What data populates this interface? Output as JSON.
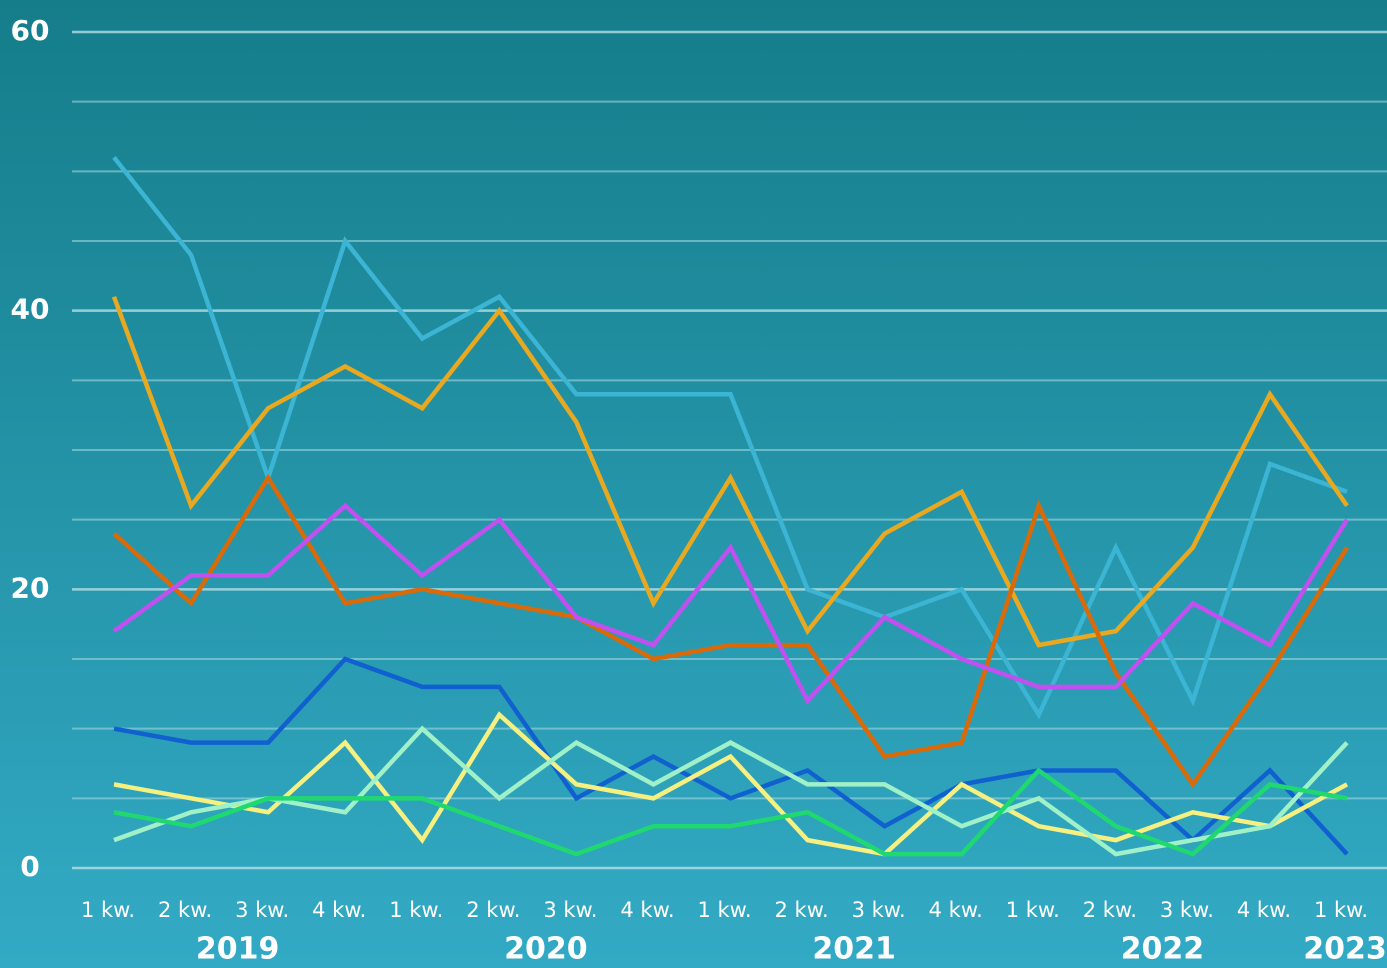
{
  "chart_data": {
    "type": "line",
    "categories": [
      "1 kw.",
      "2 kw.",
      "3 kw.",
      "4 kw.",
      "1 kw.",
      "2 kw.",
      "3 kw.",
      "4 kw.",
      "1 kw.",
      "2 kw.",
      "3 kw.",
      "4 kw.",
      "1 kw.",
      "2 kw.",
      "3 kw.",
      "4 kw.",
      "1 kw."
    ],
    "groups": [
      {
        "label": "2019",
        "count": 4
      },
      {
        "label": "2020",
        "count": 4
      },
      {
        "label": "2021",
        "count": 4
      },
      {
        "label": "2022",
        "count": 4
      },
      {
        "label": "2023",
        "count": 1
      }
    ],
    "series": [
      {
        "color": "#3cb4d4",
        "values": [
          51,
          44,
          28,
          45,
          38,
          41,
          34,
          34,
          34,
          20,
          18,
          20,
          11,
          23,
          12,
          29,
          27
        ]
      },
      {
        "color": "#e8a820",
        "values": [
          41,
          26,
          33,
          36,
          33,
          40,
          32,
          19,
          28,
          17,
          24,
          27,
          16,
          17,
          23,
          34,
          26
        ]
      },
      {
        "color": "#d96a0a",
        "values": [
          24,
          19,
          28,
          19,
          20,
          19,
          18,
          15,
          16,
          16,
          8,
          9,
          26,
          14,
          6,
          14,
          23
        ]
      },
      {
        "color": "#c050f0",
        "values": [
          17,
          21,
          21,
          26,
          21,
          25,
          18,
          16,
          23,
          12,
          18,
          15,
          13,
          13,
          19,
          16,
          25
        ]
      },
      {
        "color": "#1060d0",
        "values": [
          10,
          9,
          9,
          15,
          13,
          13,
          5,
          8,
          5,
          7,
          3,
          6,
          7,
          7,
          2,
          7,
          1
        ]
      },
      {
        "color": "#f5f080",
        "values": [
          6,
          5,
          4,
          9,
          2,
          11,
          6,
          5,
          8,
          2,
          1,
          6,
          3,
          2,
          4,
          3,
          6
        ]
      },
      {
        "color": "#a0f0c8",
        "values": [
          2,
          4,
          5,
          4,
          10,
          5,
          9,
          6,
          9,
          6,
          6,
          3,
          5,
          1,
          2,
          3,
          9
        ]
      },
      {
        "color": "#20d870",
        "values": [
          4,
          3,
          5,
          5,
          5,
          3,
          1,
          3,
          3,
          4,
          1,
          1,
          7,
          3,
          1,
          6,
          5
        ]
      }
    ],
    "ylim": [
      0,
      60
    ],
    "yticks": [
      0,
      20,
      40,
      60
    ],
    "minor_yticks": [
      5,
      10,
      15,
      25,
      30,
      35,
      45,
      50,
      55
    ],
    "grid": true
  }
}
